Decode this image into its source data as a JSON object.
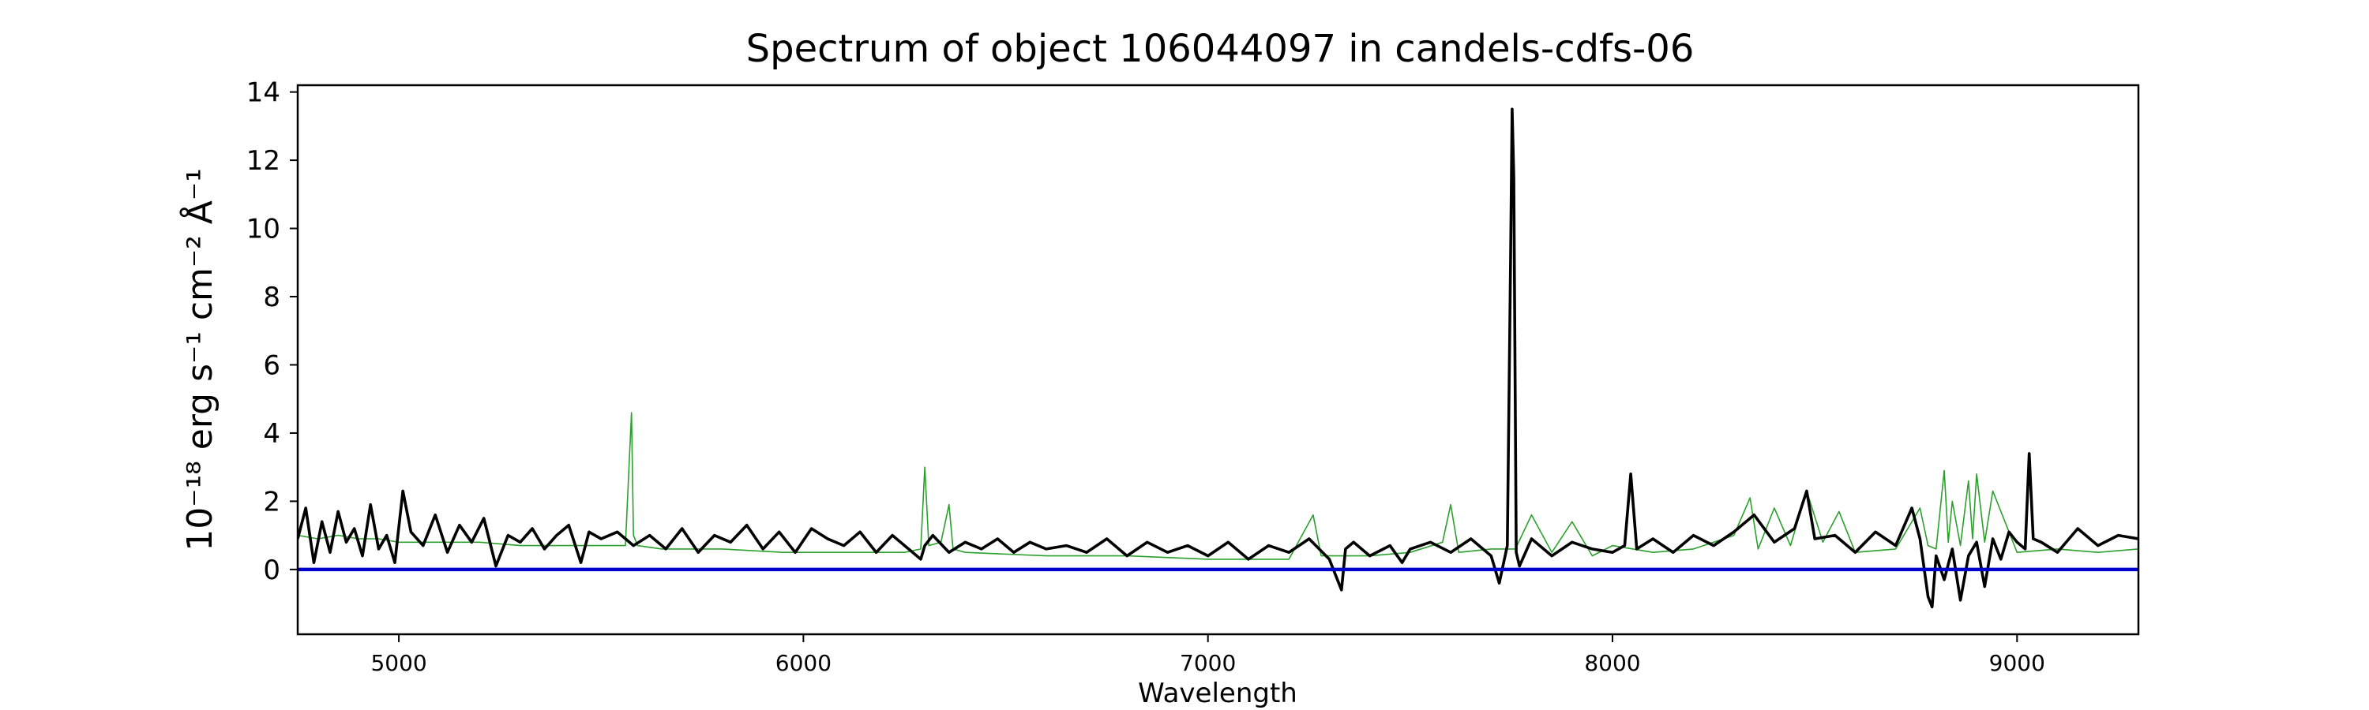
{
  "chart_data": {
    "type": "line",
    "title": "Spectrum of object 106044097 in candels-cdfs-06",
    "xlabel": "Wavelength",
    "ylabel": "10⁻¹⁸ erg s⁻¹ cm⁻² Å⁻¹",
    "xlim": [
      4750,
      9300
    ],
    "ylim": [
      -1.9,
      14.2
    ],
    "xticks": [
      5000,
      6000,
      7000,
      8000,
      9000
    ],
    "yticks": [
      0,
      2,
      4,
      6,
      8,
      10,
      12,
      14
    ],
    "grid": false,
    "legend": "none",
    "series": [
      {
        "role": "flux",
        "color": "#000000",
        "x": [
          4750,
          4770,
          4790,
          4810,
          4830,
          4850,
          4870,
          4890,
          4910,
          4930,
          4950,
          4970,
          4990,
          5010,
          5030,
          5060,
          5090,
          5120,
          5150,
          5180,
          5210,
          5240,
          5270,
          5300,
          5330,
          5360,
          5390,
          5420,
          5450,
          5470,
          5500,
          5540,
          5580,
          5620,
          5660,
          5700,
          5740,
          5780,
          5820,
          5860,
          5900,
          5940,
          5980,
          6020,
          6060,
          6100,
          6140,
          6180,
          6220,
          6260,
          6290,
          6300,
          6320,
          6360,
          6400,
          6440,
          6480,
          6520,
          6560,
          6600,
          6650,
          6700,
          6750,
          6800,
          6850,
          6900,
          6950,
          7000,
          7050,
          7100,
          7150,
          7200,
          7250,
          7300,
          7330,
          7340,
          7360,
          7400,
          7450,
          7480,
          7500,
          7550,
          7600,
          7650,
          7700,
          7720,
          7740,
          7748,
          7752,
          7756,
          7762,
          7770,
          7800,
          7850,
          7900,
          7950,
          8000,
          8030,
          8045,
          8060,
          8100,
          8150,
          8200,
          8250,
          8300,
          8350,
          8400,
          8450,
          8480,
          8500,
          8550,
          8600,
          8650,
          8700,
          8740,
          8760,
          8780,
          8790,
          8800,
          8820,
          8840,
          8860,
          8880,
          8900,
          8920,
          8940,
          8960,
          8980,
          9000,
          9020,
          9030,
          9040,
          9060,
          9100,
          9150,
          9200,
          9250,
          9300
        ],
        "y": [
          0.9,
          1.8,
          0.2,
          1.4,
          0.5,
          1.7,
          0.8,
          1.2,
          0.4,
          1.9,
          0.6,
          1.0,
          0.2,
          2.3,
          1.1,
          0.7,
          1.6,
          0.5,
          1.3,
          0.8,
          1.5,
          0.1,
          1.0,
          0.8,
          1.2,
          0.6,
          1.0,
          1.3,
          0.2,
          1.1,
          0.9,
          1.1,
          0.7,
          1.0,
          0.6,
          1.2,
          0.5,
          1.0,
          0.8,
          1.3,
          0.6,
          1.1,
          0.5,
          1.2,
          0.9,
          0.7,
          1.1,
          0.5,
          1.0,
          0.6,
          0.3,
          0.7,
          1.0,
          0.5,
          0.8,
          0.6,
          0.9,
          0.5,
          0.8,
          0.6,
          0.7,
          0.5,
          0.9,
          0.4,
          0.8,
          0.5,
          0.7,
          0.4,
          0.8,
          0.3,
          0.7,
          0.5,
          0.9,
          0.3,
          -0.6,
          0.6,
          0.8,
          0.4,
          0.7,
          0.2,
          0.6,
          0.8,
          0.5,
          0.9,
          0.4,
          -0.4,
          0.7,
          9.0,
          13.5,
          11.5,
          0.5,
          0.1,
          0.9,
          0.4,
          0.8,
          0.6,
          0.5,
          0.7,
          2.8,
          0.6,
          0.9,
          0.5,
          1.0,
          0.7,
          1.1,
          1.6,
          0.8,
          1.2,
          2.3,
          0.9,
          1.0,
          0.5,
          1.1,
          0.7,
          1.8,
          0.9,
          -0.8,
          -1.1,
          0.4,
          -0.3,
          0.6,
          -0.9,
          0.4,
          0.8,
          -0.5,
          0.9,
          0.3,
          1.1,
          0.8,
          0.6,
          3.4,
          0.9,
          0.8,
          0.5,
          1.2,
          0.7,
          1.0,
          0.9
        ]
      },
      {
        "role": "model",
        "color": "#2ca02c",
        "x": [
          4750,
          4800,
          4850,
          4900,
          4950,
          5000,
          5100,
          5200,
          5300,
          5400,
          5500,
          5560,
          5575,
          5580,
          5590,
          5650,
          5800,
          5950,
          6100,
          6250,
          6290,
          6300,
          6310,
          6340,
          6360,
          6370,
          6400,
          6600,
          6800,
          7000,
          7200,
          7260,
          7280,
          7400,
          7500,
          7580,
          7600,
          7620,
          7700,
          7760,
          7800,
          7850,
          7900,
          7950,
          8000,
          8100,
          8200,
          8300,
          8340,
          8360,
          8400,
          8440,
          8480,
          8520,
          8560,
          8600,
          8700,
          8760,
          8780,
          8800,
          8820,
          8830,
          8840,
          8860,
          8880,
          8890,
          8900,
          8920,
          8940,
          9000,
          9100,
          9200,
          9300
        ],
        "y": [
          1.0,
          0.9,
          1.0,
          0.9,
          0.9,
          0.8,
          0.8,
          0.8,
          0.7,
          0.7,
          0.7,
          0.7,
          4.6,
          1.0,
          0.7,
          0.6,
          0.6,
          0.5,
          0.5,
          0.5,
          0.6,
          3.0,
          0.7,
          0.8,
          1.9,
          0.6,
          0.5,
          0.4,
          0.4,
          0.3,
          0.3,
          1.6,
          0.4,
          0.4,
          0.5,
          0.8,
          1.9,
          0.5,
          0.6,
          0.6,
          1.6,
          0.5,
          1.4,
          0.4,
          0.7,
          0.5,
          0.6,
          1.0,
          2.1,
          0.6,
          1.8,
          0.7,
          2.3,
          0.8,
          1.7,
          0.5,
          0.6,
          1.8,
          0.7,
          0.6,
          2.9,
          0.8,
          2.0,
          0.7,
          2.6,
          0.9,
          2.8,
          0.8,
          2.3,
          0.5,
          0.6,
          0.5,
          0.6
        ]
      },
      {
        "role": "zero",
        "color": "#0000cc",
        "x": [
          4750,
          9300
        ],
        "y": [
          0,
          0
        ]
      }
    ]
  }
}
